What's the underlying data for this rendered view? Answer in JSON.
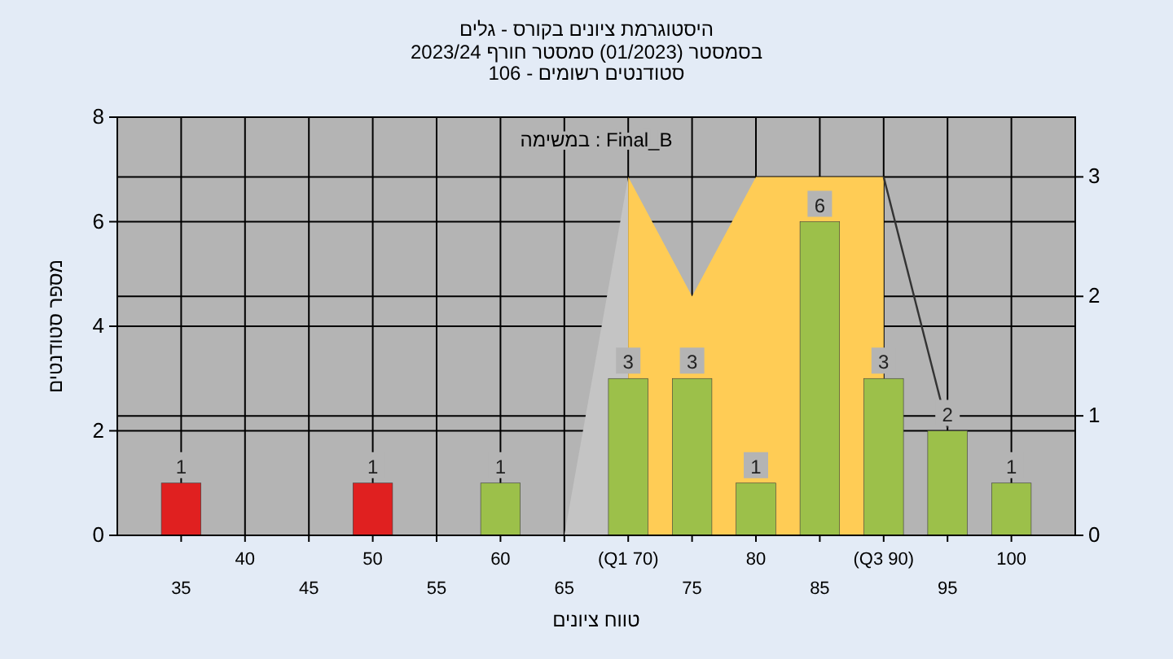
{
  "chart_data": {
    "type": "bar",
    "title": "היסטוגרמת ציונים בקורס - גלים",
    "subtitle": "בסמסטר (01/2023)  סמסטר חורף 2023/24\nסטודנטים רשומים - 106",
    "xlabel": "טווח ציונים",
    "ylabel": "מספר סטודנטים",
    "annotations": [
      "Final_B : במשימה"
    ],
    "categories": [
      "35",
      "40",
      "45",
      "50",
      "55",
      "60",
      "65",
      "(Q1 70)",
      "75",
      "80",
      "85",
      "(Q3 90)",
      "95",
      "100"
    ],
    "series": [
      {
        "type": "area",
        "axis": "y2",
        "color": "#c4c4c4",
        "values": [
          null,
          null,
          null,
          null,
          null,
          null,
          0,
          3,
          null,
          null,
          null,
          null,
          null,
          null
        ]
      },
      {
        "type": "area",
        "axis": "y2",
        "color": "#ffcc55",
        "values": [
          null,
          null,
          null,
          null,
          null,
          null,
          null,
          3,
          2,
          3,
          3,
          3,
          null,
          null
        ]
      },
      {
        "type": "line",
        "axis": "y2",
        "color": "#333333",
        "values": [
          null,
          null,
          null,
          null,
          null,
          null,
          null,
          null,
          null,
          null,
          null,
          3,
          0.9,
          null
        ]
      },
      {
        "colors": [
          "#e02020",
          null,
          null,
          "#e02020",
          null,
          "#9cc04a",
          null,
          "#9cc04a",
          "#9cc04a",
          "#9cc04a",
          "#9cc04a",
          "#9cc04a",
          "#9cc04a",
          "#9cc04a"
        ],
        "values": [
          1,
          0,
          0,
          1,
          0,
          1,
          0,
          3,
          3,
          1,
          6,
          3,
          2,
          1
        ],
        "value_labels": [
          "1",
          null,
          null,
          "1",
          null,
          "1",
          null,
          "3",
          "3",
          "1",
          "6",
          "3",
          "2",
          "1"
        ]
      }
    ],
    "ylim": [
      0,
      8
    ],
    "yticks": [
      0,
      2,
      4,
      6,
      8
    ],
    "y2lim": [
      0,
      3.5
    ],
    "y2ticks": [
      0,
      1,
      2,
      3
    ],
    "grid": true
  }
}
